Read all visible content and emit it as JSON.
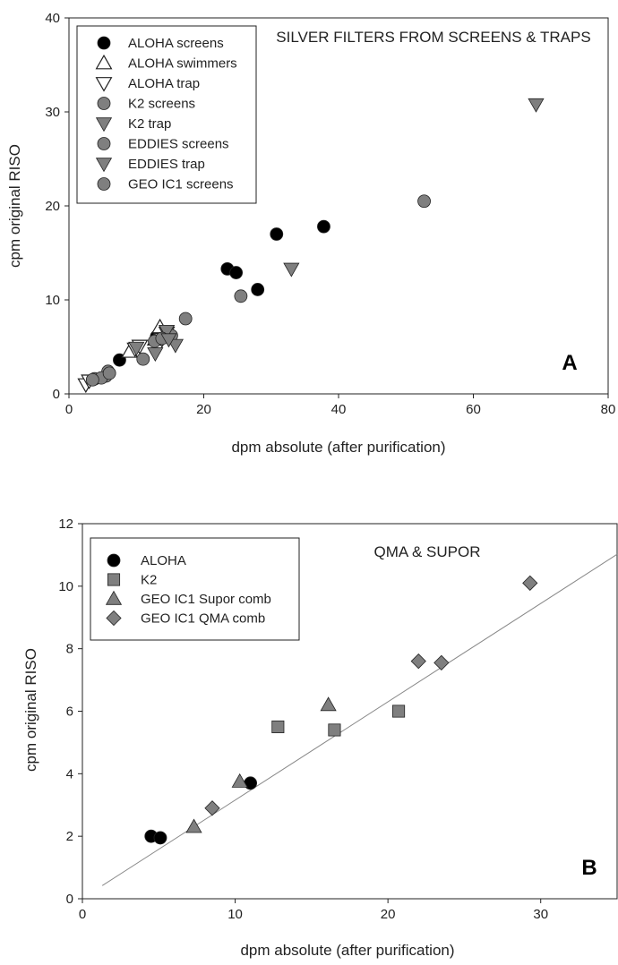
{
  "colors": {
    "black": "#000000",
    "gray": "#7f7f7f",
    "white": "#ffffff",
    "line": "#888888"
  },
  "chart_data": [
    {
      "type": "scatter",
      "title": "SILVER FILTERS FROM SCREENS & TRAPS",
      "panel_label": "A",
      "xlabel": "dpm absolute (after purification)",
      "ylabel": "cpm original RISO",
      "xlim": [
        0,
        80
      ],
      "ylim": [
        0,
        40
      ],
      "xticks": [
        0,
        20,
        40,
        60,
        80
      ],
      "yticks": [
        0,
        10,
        20,
        30,
        40
      ],
      "legend_position": "top-left",
      "series": [
        {
          "name": "ALOHA screens",
          "marker": "circle",
          "fill": "#000000",
          "x": [
            7.5,
            13,
            23.5,
            24.8,
            28,
            30.8,
            37.8
          ],
          "y": [
            3.6,
            6.1,
            13.3,
            12.9,
            11.1,
            17,
            17.8
          ]
        },
        {
          "name": "ALOHA swimmers",
          "marker": "triangle-up",
          "fill": "#ffffff",
          "x": [
            9,
            12.8,
            13.5
          ],
          "y": [
            4.5,
            5.8,
            7.1
          ]
        },
        {
          "name": "ALOHA trap",
          "marker": "triangle-down",
          "fill": "#ffffff",
          "x": [
            2.5,
            3,
            9.8,
            10.5,
            13.8,
            14.5
          ],
          "y": [
            1,
            1.4,
            4.8,
            5.1,
            5.8,
            6.5
          ]
        },
        {
          "name": "K2 screens",
          "marker": "circle",
          "fill": "#7f7f7f",
          "x": [
            3.8,
            5.5,
            5.8,
            11,
            12.7,
            15.2,
            17.3,
            25.5,
            52.7
          ],
          "y": [
            1.6,
            1.9,
            2.4,
            3.7,
            5.6,
            6.2,
            8,
            10.4,
            20.5
          ]
        },
        {
          "name": "K2 trap",
          "marker": "triangle-down",
          "fill": "#7f7f7f",
          "x": [
            12.8,
            14.5,
            15.8,
            33,
            69.3
          ],
          "y": [
            4.3,
            6.7,
            5.2,
            13.3,
            30.8
          ]
        },
        {
          "name": "EDDIES screens",
          "marker": "circle",
          "fill": "#7f7f7f",
          "x": [
            4.8,
            13.8
          ],
          "y": [
            1.7,
            5.9
          ]
        },
        {
          "name": "EDDIES trap",
          "marker": "triangle-down",
          "fill": "#7f7f7f",
          "x": [
            10,
            14.8
          ],
          "y": [
            4.9,
            5.8
          ]
        },
        {
          "name": "GEO IC1 screens",
          "marker": "circle",
          "fill": "#7f7f7f",
          "x": [
            3.5,
            6
          ],
          "y": [
            1.5,
            2.2
          ]
        }
      ]
    },
    {
      "type": "scatter",
      "title": "QMA & SUPOR",
      "panel_label": "B",
      "xlabel": "dpm absolute (after purification)",
      "ylabel": "cpm original RISO",
      "xlim": [
        0,
        35
      ],
      "ylim": [
        0,
        12
      ],
      "xticks": [
        0,
        10,
        20,
        30
      ],
      "yticks": [
        0,
        2,
        4,
        6,
        8,
        10,
        12
      ],
      "legend_position": "top-left",
      "regression_line": {
        "x": [
          1.3,
          35
        ],
        "y": [
          0.42,
          11.02
        ]
      },
      "series": [
        {
          "name": "ALOHA",
          "marker": "circle",
          "fill": "#000000",
          "x": [
            4.5,
            5.1,
            11
          ],
          "y": [
            2,
            1.95,
            3.7
          ]
        },
        {
          "name": "K2",
          "marker": "square",
          "fill": "#7f7f7f",
          "x": [
            12.8,
            16.5,
            20.7
          ],
          "y": [
            5.5,
            5.4,
            6
          ]
        },
        {
          "name": "GEO IC1 Supor comb",
          "marker": "triangle-up",
          "fill": "#7f7f7f",
          "x": [
            7.3,
            10.3,
            16.1
          ],
          "y": [
            2.3,
            3.75,
            6.2
          ]
        },
        {
          "name": "GEO IC1 QMA comb",
          "marker": "diamond",
          "fill": "#7f7f7f",
          "x": [
            8.5,
            22,
            23.5,
            29.3
          ],
          "y": [
            2.9,
            7.6,
            7.55,
            10.1
          ]
        }
      ]
    }
  ]
}
